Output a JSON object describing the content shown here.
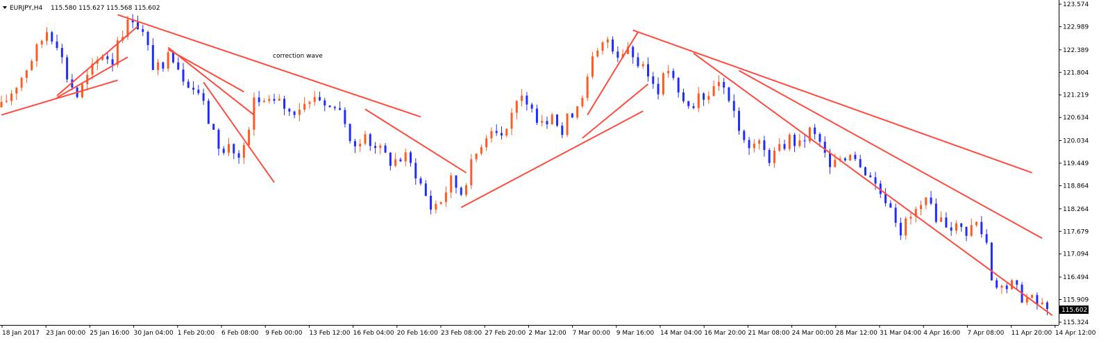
{
  "header": {
    "symbol": "EURJPY,H4",
    "ohlc": "115.580 115.627 115.568 115.602",
    "menu_icon": "triangle-down-icon"
  },
  "annotation": "correction wave",
  "colors": {
    "bull": "#ff5a1f",
    "bear": "#1f2bff",
    "trendline": "#ff4a3d",
    "annotation": "#29a8e0",
    "price_tag_bg": "#000000",
    "price_tag_text": "#ffffff"
  },
  "chart_data": {
    "type": "candlestick",
    "timeframe": "H4",
    "instrument": "EURJPY",
    "ylim": [
      115.324,
      123.574
    ],
    "y_ticks": [
      "123.574",
      "122.989",
      "122.389",
      "121.804",
      "121.219",
      "120.634",
      "120.034",
      "119.449",
      "118.864",
      "118.264",
      "117.679",
      "117.094",
      "116.494",
      "115.909",
      "115.324"
    ],
    "x_ticks": [
      "18 Jan 2017",
      "23 Jan 00:00",
      "25 Jan 16:00",
      "30 Jan 04:00",
      "1 Feb 20:00",
      "6 Feb 08:00",
      "9 Feb 00:00",
      "13 Feb 12:00",
      "16 Feb 04:00",
      "20 Feb 16:00",
      "23 Feb 08:00",
      "27 Feb 20:00",
      "2 Mar 12:00",
      "7 Mar 00:00",
      "9 Mar 16:00",
      "14 Mar 04:00",
      "16 Mar 20:00",
      "21 Mar 08:00",
      "24 Mar 00:00",
      "28 Mar 12:00",
      "31 Mar 04:00",
      "4 Apr 16:00",
      "7 Apr 08:00",
      "11 Apr 20:00",
      "14 Apr 12:00"
    ],
    "current_price": "115.602",
    "price_path": [
      [
        0,
        120.9
      ],
      [
        4,
        121.7
      ],
      [
        7,
        122.4
      ],
      [
        9,
        122.9
      ],
      [
        11,
        122.6
      ],
      [
        13,
        121.7
      ],
      [
        15,
        121.2
      ],
      [
        18,
        121.9
      ],
      [
        20,
        122.3
      ],
      [
        22,
        122.1
      ],
      [
        23,
        122.7
      ],
      [
        26,
        123.25
      ],
      [
        28,
        122.8
      ],
      [
        30,
        122.0
      ],
      [
        32,
        121.8
      ],
      [
        33,
        122.5
      ],
      [
        36,
        121.7
      ],
      [
        39,
        121.3
      ],
      [
        42,
        120.2
      ],
      [
        44,
        119.7
      ],
      [
        45,
        119.95
      ],
      [
        47,
        119.55
      ],
      [
        49,
        120.2
      ],
      [
        50,
        121.1
      ],
      [
        53,
        120.9
      ],
      [
        55,
        121.1
      ],
      [
        57,
        120.75
      ],
      [
        60,
        121.0
      ],
      [
        62,
        121.25
      ],
      [
        65,
        120.9
      ],
      [
        67,
        120.9
      ],
      [
        69,
        119.9
      ],
      [
        71,
        120.1
      ],
      [
        74,
        119.9
      ],
      [
        77,
        119.5
      ],
      [
        80,
        119.6
      ],
      [
        82,
        119.2
      ],
      [
        85,
        118.3
      ],
      [
        87,
        118.5
      ],
      [
        89,
        119.0
      ],
      [
        91,
        118.7
      ],
      [
        93,
        119.4
      ],
      [
        95,
        120.0
      ],
      [
        97,
        120.4
      ],
      [
        99,
        120.2
      ],
      [
        101,
        120.8
      ],
      [
        103,
        121.1
      ],
      [
        105,
        120.7
      ],
      [
        108,
        120.6
      ],
      [
        110,
        120.5
      ],
      [
        111,
        120.2
      ],
      [
        112,
        120.6
      ],
      [
        114,
        121.0
      ],
      [
        116,
        121.6
      ],
      [
        117,
        122.1
      ],
      [
        119,
        122.5
      ],
      [
        120,
        122.7
      ],
      [
        122,
        122.3
      ],
      [
        124,
        122.5
      ],
      [
        126,
        122.0
      ],
      [
        128,
        121.7
      ],
      [
        130,
        121.4
      ],
      [
        132,
        121.9
      ],
      [
        134,
        121.2
      ],
      [
        136,
        120.9
      ],
      [
        138,
        121.1
      ],
      [
        140,
        121.3
      ],
      [
        142,
        121.7
      ],
      [
        144,
        120.9
      ],
      [
        146,
        120.4
      ],
      [
        148,
        120.0
      ],
      [
        150,
        119.9
      ],
      [
        152,
        119.6
      ],
      [
        154,
        119.8
      ],
      [
        156,
        120.1
      ],
      [
        158,
        119.9
      ],
      [
        160,
        120.3
      ],
      [
        162,
        120.0
      ],
      [
        164,
        119.3
      ],
      [
        166,
        119.6
      ],
      [
        168,
        119.8
      ],
      [
        170,
        119.5
      ],
      [
        172,
        119.1
      ],
      [
        174,
        118.7
      ],
      [
        176,
        118.4
      ],
      [
        178,
        117.7
      ],
      [
        179,
        117.9
      ],
      [
        181,
        118.2
      ],
      [
        183,
        118.4
      ],
      [
        185,
        118.1
      ],
      [
        187,
        117.9
      ],
      [
        189,
        117.8
      ],
      [
        191,
        117.7
      ],
      [
        193,
        117.9
      ],
      [
        195,
        117.4
      ],
      [
        196,
        116.5
      ],
      [
        198,
        116.2
      ],
      [
        200,
        116.3
      ],
      [
        202,
        116.0
      ],
      [
        204,
        115.9
      ],
      [
        206,
        115.7
      ],
      [
        207,
        115.6
      ]
    ],
    "trendlines": [
      [
        [
          0,
          120.7
        ],
        [
          23,
          121.6
        ]
      ],
      [
        [
          11,
          121.15
        ],
        [
          25,
          122.2
        ]
      ],
      [
        [
          11,
          121.2
        ],
        [
          27,
          123.0
        ]
      ],
      [
        [
          23,
          123.3
        ],
        [
          83,
          120.65
        ]
      ],
      [
        [
          33,
          122.4
        ],
        [
          48,
          121.3
        ]
      ],
      [
        [
          33,
          122.45
        ],
        [
          50,
          120.7
        ]
      ],
      [
        [
          40,
          121.55
        ],
        [
          54,
          118.95
        ]
      ],
      [
        [
          72,
          120.85
        ],
        [
          92,
          119.2
        ]
      ],
      [
        [
          91,
          118.3
        ],
        [
          127,
          120.8
        ]
      ],
      [
        [
          115,
          120.1
        ],
        [
          128,
          121.5
        ]
      ],
      [
        [
          116,
          120.7
        ],
        [
          126,
          122.85
        ]
      ],
      [
        [
          125,
          122.9
        ],
        [
          204,
          119.2
        ]
      ],
      [
        [
          146,
          121.85
        ],
        [
          206,
          117.5
        ]
      ],
      [
        [
          137,
          122.3
        ],
        [
          208,
          115.5
        ]
      ]
    ]
  }
}
